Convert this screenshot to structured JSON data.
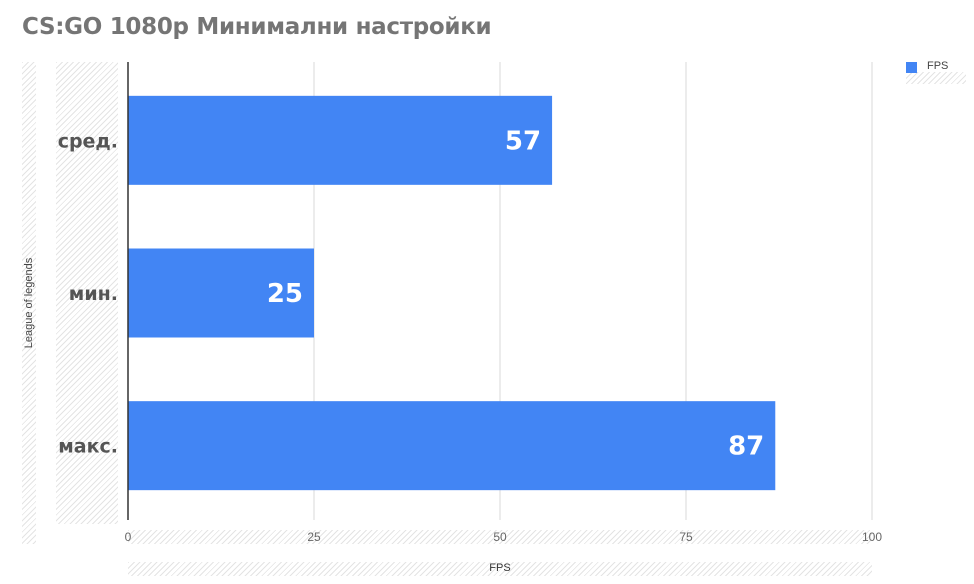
{
  "chart_data": {
    "type": "bar",
    "orientation": "horizontal",
    "title": "CS:GO 1080p Минимални настройки",
    "xlabel": "FPS",
    "ylabel": "League of legends",
    "categories": [
      "сред.",
      "мин.",
      "макс."
    ],
    "series": [
      {
        "name": "FPS",
        "values": [
          57,
          25,
          87
        ],
        "color": "#4285f4"
      }
    ],
    "xlim": [
      0,
      100
    ],
    "xticks": [
      0,
      25,
      50,
      75,
      100
    ],
    "grid": true,
    "legend": "top-right",
    "data_labels": true
  }
}
